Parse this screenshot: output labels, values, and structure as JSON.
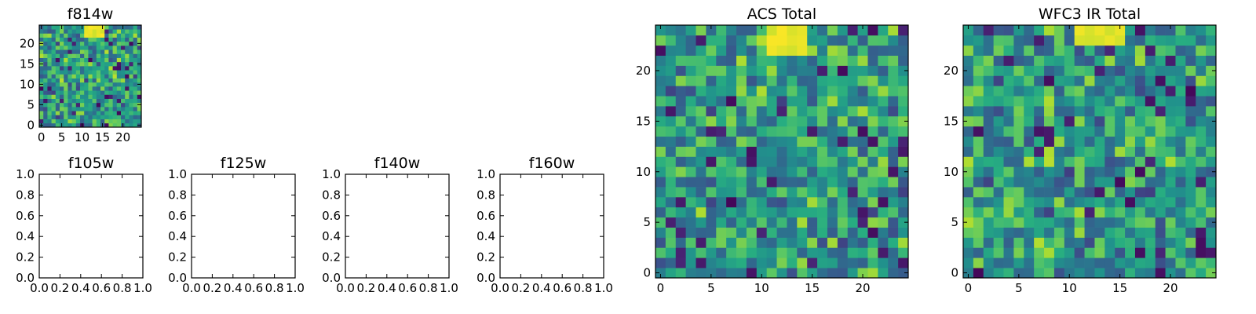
{
  "figure": {
    "colormap": "viridis",
    "colors": {
      "frame": "#000000",
      "background": "#ffffff"
    }
  },
  "chart_data": [
    {
      "type": "heatmap",
      "id": "f814w",
      "title": "f814w",
      "grid_size": 25,
      "xlim": [
        -0.5,
        24.5
      ],
      "ylim": [
        -0.5,
        24.5
      ],
      "x_tick_labels": [
        "0",
        "5",
        "10",
        "15",
        "20"
      ],
      "y_tick_labels": [
        "0",
        "5",
        "10",
        "15",
        "20"
      ],
      "bright_region": {
        "x": [
          11,
          15
        ],
        "y": [
          22,
          24
        ]
      },
      "seed": 11
    },
    {
      "type": "empty",
      "id": "f105w",
      "title": "f105w",
      "xlim": [
        0,
        1
      ],
      "ylim": [
        0,
        1
      ],
      "x_tick_labels": [
        "0.0",
        "0.2",
        "0.4",
        "0.6",
        "0.8",
        "1.0"
      ],
      "y_tick_labels": [
        "0.0",
        "0.2",
        "0.4",
        "0.6",
        "0.8",
        "1.0"
      ]
    },
    {
      "type": "empty",
      "id": "f125w",
      "title": "f125w",
      "xlim": [
        0,
        1
      ],
      "ylim": [
        0,
        1
      ],
      "x_tick_labels": [
        "0.0",
        "0.2",
        "0.4",
        "0.6",
        "0.8",
        "1.0"
      ],
      "y_tick_labels": [
        "0.0",
        "0.2",
        "0.4",
        "0.6",
        "0.8",
        "1.0"
      ]
    },
    {
      "type": "empty",
      "id": "f140w",
      "title": "f140w",
      "xlim": [
        0,
        1
      ],
      "ylim": [
        0,
        1
      ],
      "x_tick_labels": [
        "0.0",
        "0.2",
        "0.4",
        "0.6",
        "0.8",
        "1.0"
      ],
      "y_tick_labels": [
        "0.0",
        "0.2",
        "0.4",
        "0.6",
        "0.8",
        "1.0"
      ]
    },
    {
      "type": "empty",
      "id": "f160w",
      "title": "f160w",
      "xlim": [
        0,
        1
      ],
      "ylim": [
        0,
        1
      ],
      "x_tick_labels": [
        "0.0",
        "0.2",
        "0.4",
        "0.6",
        "0.8",
        "1.0"
      ],
      "y_tick_labels": [
        "0.0",
        "0.2",
        "0.4",
        "0.6",
        "0.8",
        "1.0"
      ]
    },
    {
      "type": "heatmap",
      "id": "acs-total",
      "title": "ACS Total",
      "grid_size": 25,
      "xlim": [
        -0.5,
        24.5
      ],
      "ylim": [
        -0.5,
        24.5
      ],
      "x_tick_labels": [
        "0",
        "5",
        "10",
        "15",
        "20"
      ],
      "y_tick_labels": [
        "0",
        "5",
        "10",
        "15",
        "20"
      ],
      "bright_region": {
        "x": [
          11,
          14
        ],
        "y": [
          22,
          24
        ]
      },
      "seed": 23
    },
    {
      "type": "heatmap",
      "id": "wfc3-ir-total",
      "title": "WFC3 IR Total",
      "grid_size": 25,
      "xlim": [
        -0.5,
        24.5
      ],
      "ylim": [
        -0.5,
        24.5
      ],
      "x_tick_labels": [
        "0",
        "5",
        "10",
        "15",
        "20"
      ],
      "y_tick_labels": [
        "0",
        "5",
        "10",
        "15",
        "20"
      ],
      "bright_region": {
        "x": [
          11,
          15
        ],
        "y": [
          23,
          24
        ]
      },
      "seed": 37
    }
  ]
}
